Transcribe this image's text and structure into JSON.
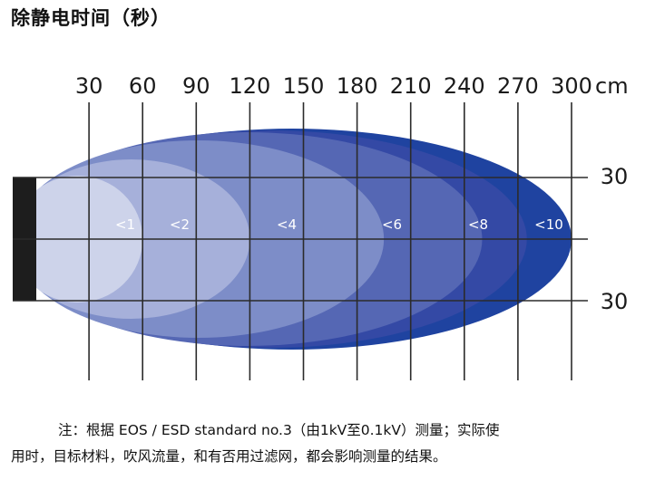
{
  "title": "除静电时间（秒）",
  "top_axis": {
    "ticks": [
      "30",
      "60",
      "90",
      "120",
      "150",
      "180",
      "210",
      "240",
      "270",
      "300"
    ],
    "unit": "cm"
  },
  "side_axis": {
    "upper": "30",
    "lower": "30"
  },
  "zones": [
    {
      "label": "<1",
      "reach_cm": 60,
      "color": "#cdd3ea"
    },
    {
      "label": "<2",
      "reach_cm": 120,
      "color": "#a6b0da"
    },
    {
      "label": "<4",
      "reach_cm": 195,
      "color": "#7d8dc8"
    },
    {
      "label": "<6",
      "reach_cm": 250,
      "color": "#5567b4"
    },
    {
      "label": "<8",
      "reach_cm": 275,
      "color": "#3449a5"
    },
    {
      "label": "<10",
      "reach_cm": 300,
      "color": "#1f43a0"
    }
  ],
  "note": {
    "line1": "注：根据 EOS / ESD standard no.3（由1kV至0.1kV）测量；实际使",
    "line2": "用时，目标材料，吹风流量，和有否用过滤网，都会影响测量的结果。"
  }
}
